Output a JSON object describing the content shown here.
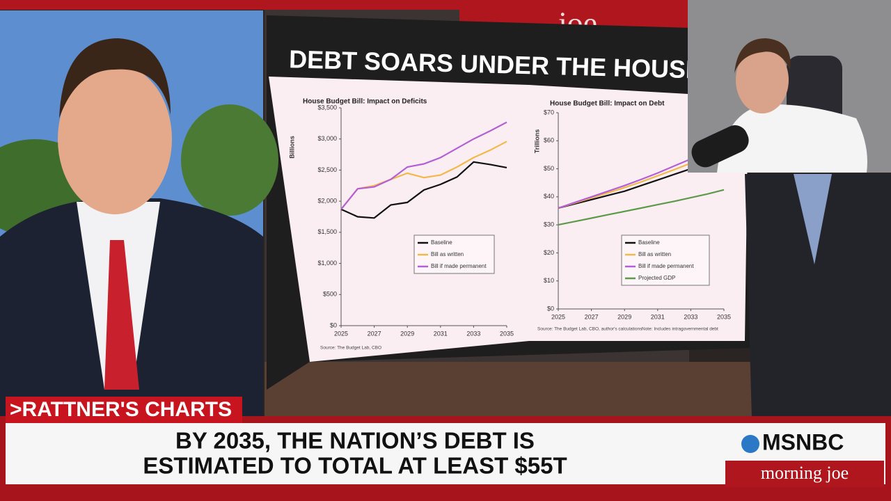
{
  "studio_sign": "joe",
  "screen_title": "DEBT SOARS UNDER THE HOUSE BI",
  "chart_data": [
    {
      "type": "line",
      "title": "House Budget Bill: Impact on Deficits",
      "y_label": "Billions",
      "x": [
        2025,
        2026,
        2027,
        2028,
        2029,
        2030,
        2031,
        2032,
        2033,
        2034,
        2035
      ],
      "xlim": [
        2025,
        2035
      ],
      "xticks": [
        2025,
        2027,
        2029,
        2031,
        2033,
        2035
      ],
      "ylim": [
        0,
        3500
      ],
      "yticks": [
        {
          "value": 0,
          "label": "$0"
        },
        {
          "value": 500,
          "label": "$500"
        },
        {
          "value": 1000,
          "label": "$1,000"
        },
        {
          "value": 1500,
          "label": "$1,500"
        },
        {
          "value": 2000,
          "label": "$2,000"
        },
        {
          "value": 2500,
          "label": "$2,500"
        },
        {
          "value": 3000,
          "label": "$3,000"
        },
        {
          "value": 3500,
          "label": "$3,500"
        }
      ],
      "series": [
        {
          "name": "Baseline",
          "color": "#111111",
          "values": [
            1870,
            1750,
            1730,
            1940,
            1980,
            2180,
            2270,
            2390,
            2630,
            2590,
            2540
          ]
        },
        {
          "name": "Bill as written",
          "color": "#f2b94a",
          "values": [
            1870,
            2200,
            2250,
            2350,
            2450,
            2380,
            2420,
            2550,
            2700,
            2820,
            2960
          ]
        },
        {
          "name": "Bill if made permanent",
          "color": "#b45fd6",
          "values": [
            1870,
            2200,
            2230,
            2350,
            2550,
            2600,
            2700,
            2850,
            3000,
            3130,
            3270
          ]
        }
      ],
      "source": "Source: The Budget Lab, CBO"
    },
    {
      "type": "line",
      "title": "House Budget Bill: Impact on Debt",
      "y_label": "Trillions",
      "x": [
        2025,
        2026,
        2027,
        2028,
        2029,
        2030,
        2031,
        2032,
        2033,
        2034,
        2035
      ],
      "xlim": [
        2025,
        2035
      ],
      "xticks": [
        2025,
        2027,
        2029,
        2031,
        2033,
        2035
      ],
      "ylim": [
        0,
        70
      ],
      "yticks": [
        {
          "value": 0,
          "label": "$0"
        },
        {
          "value": 10,
          "label": "$10"
        },
        {
          "value": 20,
          "label": "$20"
        },
        {
          "value": 30,
          "label": "$30"
        },
        {
          "value": 40,
          "label": "$40"
        },
        {
          "value": 50,
          "label": "$50"
        },
        {
          "value": 60,
          "label": "$60"
        },
        {
          "value": 70,
          "label": "$70"
        }
      ],
      "series": [
        {
          "name": "Baseline",
          "color": "#111111",
          "values": [
            36,
            37.5,
            39,
            40.5,
            42,
            44,
            46,
            48,
            50,
            52.5,
            55
          ]
        },
        {
          "name": "Bill as written",
          "color": "#f2b94a",
          "values": [
            36,
            37.8,
            39.6,
            41.4,
            43.3,
            45.3,
            47.5,
            49.7,
            52,
            54.5,
            57
          ]
        },
        {
          "name": "Bill if made permanent",
          "color": "#b45fd6",
          "values": [
            36,
            38,
            40,
            42,
            44,
            46.2,
            48.5,
            51,
            53.5,
            56,
            58.7
          ]
        },
        {
          "name": "Projected GDP",
          "color": "#5c9a4a",
          "values": [
            30,
            31.2,
            32.4,
            33.6,
            34.8,
            36,
            37.2,
            38.4,
            39.7,
            41,
            42.5
          ]
        }
      ],
      "source": "Source: The Budget Lab, CBO, author's calculations",
      "note": "Note: Includes intragovernmental debt"
    }
  ],
  "lower_third": {
    "segment": ">RATTNER'S CHARTS",
    "headline": [
      "BY 2035, THE NATION’S DEBT IS",
      "ESTIMATED TO TOTAL AT LEAST $55T"
    ],
    "network": "MSNBC",
    "show": "morning joe"
  }
}
